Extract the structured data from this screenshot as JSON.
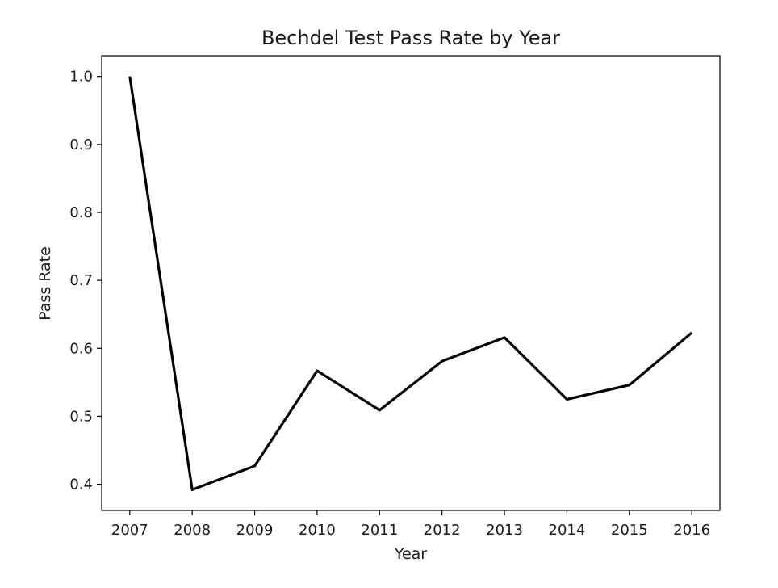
{
  "chart_data": {
    "type": "line",
    "title": "Bechdel Test Pass Rate by Year",
    "xlabel": "Year",
    "ylabel": "Pass Rate",
    "x": [
      2007,
      2008,
      2009,
      2010,
      2011,
      2012,
      2013,
      2014,
      2015,
      2016
    ],
    "x_tick_labels": [
      "2007",
      "2008",
      "2009",
      "2010",
      "2011",
      "2012",
      "2013",
      "2014",
      "2015",
      "2016"
    ],
    "y_ticks": [
      0.4,
      0.5,
      0.6,
      0.7,
      0.8,
      0.9,
      1.0
    ],
    "y_tick_labels": [
      "0.4",
      "0.5",
      "0.6",
      "0.7",
      "0.8",
      "0.9",
      "1.0"
    ],
    "series": [
      {
        "values": [
          1.0,
          0.392,
          0.427,
          0.567,
          0.509,
          0.581,
          0.616,
          0.525,
          0.546,
          0.623
        ],
        "color": "#000000"
      }
    ],
    "xlim": [
      2006.55,
      2016.45
    ],
    "ylim": [
      0.3615,
      1.0305
    ],
    "grid": false,
    "legend": false
  }
}
